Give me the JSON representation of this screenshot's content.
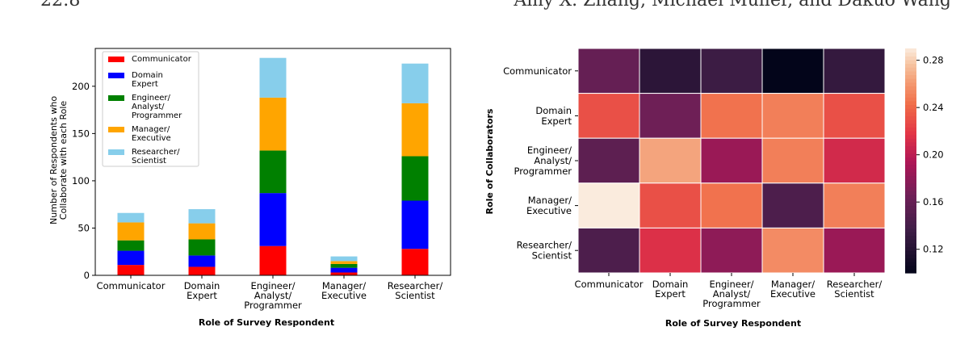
{
  "page_header": {
    "left": "22:8",
    "right": "Amy X. Zhang, Michael Muller, and Dakuo Wang"
  },
  "chart_data": [
    {
      "type": "bar",
      "stacked": true,
      "xlabel": "Role of Survey Respondent",
      "ylabel": [
        "Number of Respondents who",
        "Collaborate with each Role"
      ],
      "ylim": [
        0,
        240
      ],
      "yticks": [
        0,
        50,
        100,
        150,
        200
      ],
      "categories": [
        [
          "Communicator"
        ],
        [
          "Domain",
          "Expert"
        ],
        [
          "Engineer/",
          "Analyst/",
          "Programmer"
        ],
        [
          "Manager/",
          "Executive"
        ],
        [
          "Researcher/",
          "Scientist"
        ]
      ],
      "legend_position": "top-left",
      "series": [
        {
          "name": [
            "Communicator"
          ],
          "color": "#ff0000",
          "values": [
            11,
            9,
            31,
            3,
            28
          ]
        },
        {
          "name": [
            "Domain",
            "Expert"
          ],
          "color": "#0000ff",
          "values": [
            15,
            12,
            56,
            5,
            51
          ]
        },
        {
          "name": [
            "Engineer/",
            "Analyst/",
            "Programmer"
          ],
          "color": "#008000",
          "values": [
            11,
            17,
            45,
            4,
            47
          ]
        },
        {
          "name": [
            "Manager/",
            "Executive"
          ],
          "color": "#ffa500",
          "values": [
            19,
            17,
            56,
            3,
            56
          ]
        },
        {
          "name": [
            "Researcher/",
            "Scientist"
          ],
          "color": "#87ceeb",
          "values": [
            10,
            15,
            42,
            5,
            42
          ]
        }
      ]
    },
    {
      "type": "heatmap",
      "xlabel": "Role of Survey Respondent",
      "ylabel": "Role of Collaborators",
      "x_categories": [
        [
          "Communicator"
        ],
        [
          "Domain",
          "Expert"
        ],
        [
          "Engineer/",
          "Analyst/",
          "Programmer"
        ],
        [
          "Manager/",
          "Executive"
        ],
        [
          "Researcher/",
          "Scientist"
        ]
      ],
      "y_categories": [
        [
          "Communicator"
        ],
        [
          "Domain",
          "Expert"
        ],
        [
          "Engineer/",
          "Analyst/",
          "Programmer"
        ],
        [
          "Manager/",
          "Executive"
        ],
        [
          "Researcher/",
          "Scientist"
        ]
      ],
      "vmin": 0.1,
      "vmax": 0.29,
      "colorbar_ticks": [
        "0.12",
        "0.16",
        "0.20",
        "0.24",
        "0.28"
      ],
      "values": [
        [
          0.16,
          0.125,
          0.135,
          0.1,
          0.13
        ],
        [
          0.23,
          0.165,
          0.245,
          0.25,
          0.23
        ],
        [
          0.155,
          0.265,
          0.185,
          0.25,
          0.21
        ],
        [
          0.29,
          0.23,
          0.245,
          0.145,
          0.25
        ],
        [
          0.145,
          0.215,
          0.18,
          0.255,
          0.185
        ]
      ]
    }
  ]
}
